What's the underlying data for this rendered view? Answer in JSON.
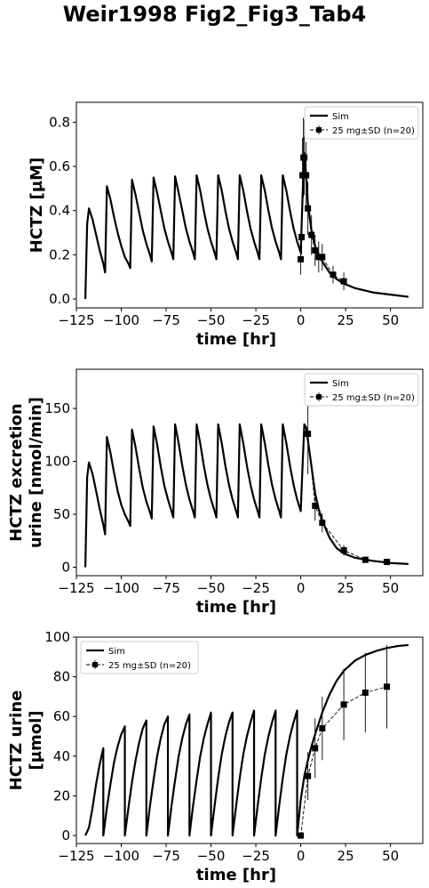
{
  "figure_title": "Weir1998 Fig2_Fig3_Tab4",
  "chart_data": [
    {
      "type": "line",
      "title": "",
      "xlabel": "time [hr]",
      "ylabel_lines": [
        "HCTZ [µM]"
      ],
      "xlim": [
        -125,
        68
      ],
      "ylim": [
        -0.04,
        0.89
      ],
      "xticks": [
        -125,
        -100,
        -75,
        -50,
        -25,
        0,
        25,
        50
      ],
      "xtick_labels": [
        "−125",
        "−100",
        "−75",
        "−50",
        "−25",
        "0",
        "25",
        "50"
      ],
      "yticks": [
        0.0,
        0.2,
        0.4,
        0.6,
        0.8
      ],
      "ytick_labels": [
        "0.0",
        "0.2",
        "0.4",
        "0.6",
        "0.8"
      ],
      "legend_position": "top-right",
      "series": [
        {
          "name": "Sim",
          "style": "solid",
          "color": "#000000",
          "x": [
            -120,
            -119,
            -118,
            -116,
            -114,
            -112,
            -110,
            -109,
            -108,
            -106,
            -104,
            -102,
            -100,
            -98,
            -96,
            -95,
            -94,
            -92,
            -90,
            -88,
            -86,
            -84,
            -83,
            -82,
            -80,
            -78,
            -76,
            -74,
            -72,
            -71,
            -70,
            -68,
            -66,
            -64,
            -62,
            -60,
            -59,
            -58,
            -56,
            -54,
            -52,
            -50,
            -48,
            -47,
            -46,
            -44,
            -42,
            -40,
            -38,
            -36,
            -35,
            -34,
            -32,
            -30,
            -28,
            -26,
            -24,
            -23,
            -22,
            -20,
            -18,
            -16,
            -14,
            -12,
            -11,
            -10,
            -8,
            -6,
            -4,
            -2,
            0,
            1,
            2,
            3,
            4,
            6,
            8,
            10,
            12,
            16,
            20,
            24,
            30,
            40,
            50,
            60
          ],
          "y": [
            0.0,
            0.34,
            0.41,
            0.36,
            0.29,
            0.22,
            0.16,
            0.12,
            0.51,
            0.45,
            0.37,
            0.3,
            0.24,
            0.19,
            0.16,
            0.14,
            0.54,
            0.47,
            0.39,
            0.31,
            0.25,
            0.2,
            0.17,
            0.55,
            0.48,
            0.4,
            0.32,
            0.26,
            0.21,
            0.18,
            0.555,
            0.48,
            0.4,
            0.32,
            0.26,
            0.21,
            0.18,
            0.56,
            0.49,
            0.4,
            0.32,
            0.26,
            0.21,
            0.18,
            0.56,
            0.49,
            0.4,
            0.32,
            0.26,
            0.21,
            0.18,
            0.56,
            0.49,
            0.4,
            0.32,
            0.26,
            0.21,
            0.18,
            0.56,
            0.49,
            0.4,
            0.32,
            0.26,
            0.21,
            0.18,
            0.56,
            0.49,
            0.4,
            0.32,
            0.26,
            0.21,
            0.46,
            0.66,
            0.56,
            0.43,
            0.31,
            0.24,
            0.2,
            0.17,
            0.12,
            0.09,
            0.07,
            0.05,
            0.03,
            0.02,
            0.01
          ]
        },
        {
          "name": "25 mg±SD (n=20)",
          "style": "dashed",
          "marker": "square",
          "color": "#000000",
          "x": [
            0.0,
            0.5,
            1.0,
            1.5,
            2.0,
            3.0,
            4.0,
            6.0,
            8.0,
            10.0,
            12.0,
            18.0,
            24.0
          ],
          "y": [
            0.18,
            0.28,
            0.56,
            0.64,
            0.64,
            0.56,
            0.41,
            0.29,
            0.22,
            0.19,
            0.19,
            0.11,
            0.08
          ],
          "err": [
            0.07,
            0.08,
            0.17,
            0.18,
            0.17,
            0.15,
            0.12,
            0.09,
            0.07,
            0.07,
            0.06,
            0.04,
            0.04
          ]
        }
      ]
    },
    {
      "type": "line",
      "title": "",
      "xlabel": "time [hr]",
      "ylabel_lines": [
        "HCTZ excretion",
        "urine [nmol/min]"
      ],
      "xlim": [
        -125,
        68
      ],
      "ylim": [
        -8,
        187
      ],
      "xticks": [
        -125,
        -100,
        -75,
        -50,
        -25,
        0,
        25,
        50
      ],
      "xtick_labels": [
        "−125",
        "−100",
        "−75",
        "−50",
        "−25",
        "0",
        "25",
        "50"
      ],
      "yticks": [
        0,
        50,
        100,
        150
      ],
      "ytick_labels": [
        "0",
        "50",
        "100",
        "150"
      ],
      "legend_position": "top-right",
      "series": [
        {
          "name": "Sim",
          "style": "solid",
          "color": "#000000",
          "x": [
            -120,
            -119,
            -118,
            -116,
            -114,
            -112,
            -110,
            -109,
            -108,
            -106,
            -104,
            -102,
            -100,
            -98,
            -96,
            -95,
            -94,
            -92,
            -90,
            -88,
            -86,
            -84,
            -83,
            -82,
            -80,
            -78,
            -76,
            -74,
            -72,
            -71,
            -70,
            -68,
            -66,
            -64,
            -62,
            -60,
            -59,
            -58,
            -56,
            -54,
            -52,
            -50,
            -48,
            -47,
            -46,
            -44,
            -42,
            -40,
            -38,
            -36,
            -35,
            -34,
            -32,
            -30,
            -28,
            -26,
            -24,
            -23,
            -22,
            -20,
            -18,
            -16,
            -14,
            -12,
            -11,
            -10,
            -8,
            -6,
            -4,
            -2,
            0,
            1,
            2,
            3,
            4,
            6,
            8,
            10,
            12,
            16,
            20,
            24,
            30,
            40,
            50,
            60
          ],
          "y": [
            0,
            85,
            99,
            88,
            72,
            55,
            40,
            31,
            123,
            108,
            89,
            72,
            59,
            50,
            43,
            39,
            130,
            113,
            93,
            75,
            62,
            52,
            46,
            133,
            116,
            95,
            77,
            64,
            53,
            47,
            135,
            117,
            96,
            78,
            64,
            53,
            47,
            135,
            117,
            96,
            78,
            64,
            53,
            47,
            135,
            117,
            96,
            78,
            64,
            53,
            47,
            135,
            117,
            96,
            78,
            64,
            53,
            47,
            135,
            117,
            96,
            78,
            64,
            53,
            47,
            135,
            117,
            96,
            78,
            64,
            53,
            95,
            135,
            132,
            120,
            95,
            70,
            55,
            44,
            28,
            18,
            13,
            9,
            6,
            4,
            3
          ]
        },
        {
          "name": "25 mg±SD (n=20)",
          "style": "dashed",
          "marker": "square",
          "color": "#000000",
          "x": [
            4,
            8,
            12,
            24,
            36,
            48
          ],
          "y": [
            126,
            58,
            42,
            16,
            7,
            5
          ],
          "err": [
            38,
            14,
            9,
            5,
            2,
            1.5
          ]
        }
      ]
    },
    {
      "type": "line",
      "title": "",
      "xlabel": "time [hr]",
      "ylabel_lines": [
        "HCTZ urine",
        "[µmol]"
      ],
      "xlim": [
        -125,
        68
      ],
      "ylim": [
        -4,
        100
      ],
      "xticks": [
        -125,
        -100,
        -75,
        -50,
        -25,
        0,
        25,
        50
      ],
      "xtick_labels": [
        "−125",
        "−100",
        "−75",
        "−50",
        "−25",
        "0",
        "25",
        "50"
      ],
      "yticks": [
        0,
        20,
        40,
        60,
        80,
        100
      ],
      "ytick_labels": [
        "0",
        "20",
        "40",
        "60",
        "80",
        "100"
      ],
      "legend_position": "top-left",
      "series": [
        {
          "name": "Sim",
          "style": "solid",
          "color": "#000000",
          "x": [
            -120,
            -118,
            -116,
            -114,
            -112,
            -110,
            -110,
            -108,
            -106,
            -104,
            -102,
            -100,
            -98,
            -98,
            -96,
            -94,
            -92,
            -90,
            -88,
            -86,
            -86,
            -84,
            -82,
            -80,
            -78,
            -76,
            -74,
            -74,
            -72,
            -70,
            -68,
            -66,
            -64,
            -62,
            -62,
            -60,
            -58,
            -56,
            -54,
            -52,
            -50,
            -50,
            -48,
            -46,
            -44,
            -42,
            -40,
            -38,
            -38,
            -36,
            -34,
            -32,
            -30,
            -28,
            -26,
            -26,
            -24,
            -22,
            -20,
            -18,
            -16,
            -14,
            -14,
            -12,
            -10,
            -8,
            -6,
            -4,
            -2,
            -2,
            0,
            2,
            4,
            6,
            8,
            12,
            16,
            20,
            24,
            30,
            36,
            42,
            48,
            54,
            60
          ],
          "y": [
            0,
            4,
            14,
            26,
            36,
            44,
            0,
            14,
            26,
            37,
            45,
            51,
            55,
            0,
            14,
            27,
            38,
            47,
            54,
            58,
            0,
            15,
            28,
            40,
            49,
            56,
            60,
            0,
            15,
            28,
            40,
            49,
            56,
            61,
            0,
            15,
            28,
            40,
            49,
            56,
            62,
            0,
            15,
            29,
            41,
            50,
            57,
            62,
            0,
            15,
            29,
            41,
            50,
            57,
            63,
            0,
            15,
            29,
            41,
            50,
            57,
            63,
            0,
            15,
            29,
            41,
            50,
            57,
            63,
            0,
            18,
            30,
            38,
            45,
            51,
            62,
            71,
            78,
            83,
            88,
            91,
            93,
            94.5,
            95.5,
            96
          ]
        },
        {
          "name": "25 mg±SD (n=20)",
          "style": "dashed",
          "marker": "square",
          "color": "#000000",
          "x": [
            0,
            4,
            8,
            12,
            24,
            36,
            48
          ],
          "y": [
            0,
            30,
            44,
            54,
            66,
            72,
            75
          ],
          "err": [
            0,
            12,
            15,
            16,
            18,
            20,
            21
          ]
        }
      ]
    }
  ]
}
